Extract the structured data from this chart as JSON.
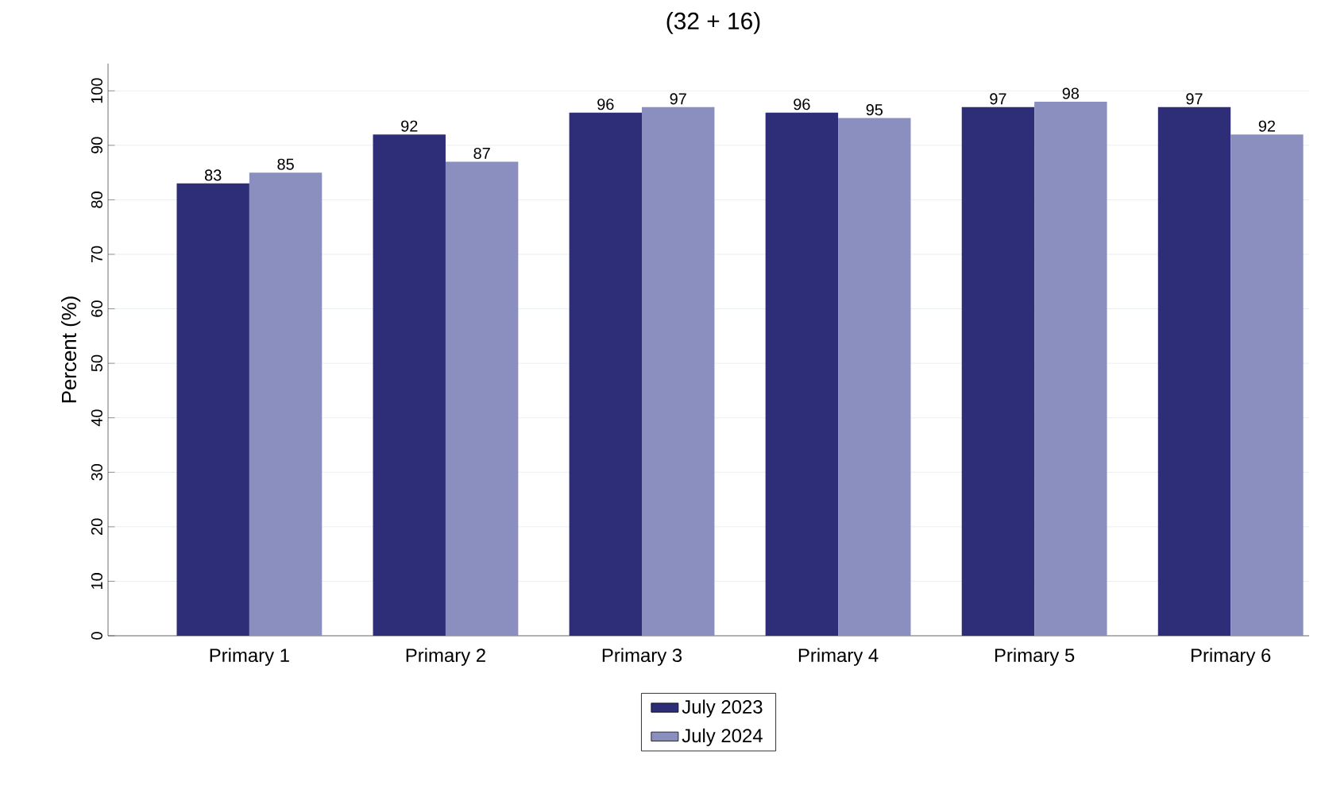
{
  "chart_data": {
    "type": "bar",
    "title": "(32 + 16)",
    "ylabel": "Percent (%)",
    "categories": [
      "Primary 1",
      "Primary 2",
      "Primary 3",
      "Primary 4",
      "Primary 5",
      "Primary 6"
    ],
    "series": [
      {
        "name": "July 2023",
        "color": "#2e2d78",
        "values": [
          83,
          92,
          96,
          96,
          97,
          97
        ]
      },
      {
        "name": "July 2024",
        "color": "#8b8fbf",
        "values": [
          85,
          87,
          97,
          95,
          98,
          92
        ]
      }
    ],
    "ylim": [
      0,
      105
    ],
    "yticks": [
      0,
      10,
      20,
      30,
      40,
      50,
      60,
      70,
      80,
      90,
      100
    ],
    "grid": "y",
    "legend": "bottom",
    "data_labels": true
  }
}
